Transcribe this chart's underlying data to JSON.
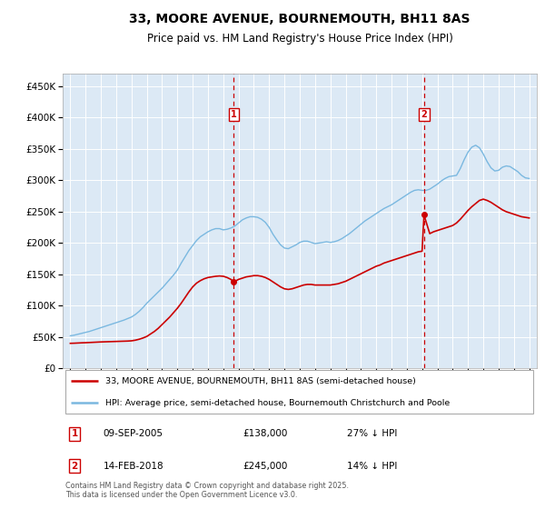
{
  "title": "33, MOORE AVENUE, BOURNEMOUTH, BH11 8AS",
  "subtitle": "Price paid vs. HM Land Registry's House Price Index (HPI)",
  "title_fontsize": 10,
  "subtitle_fontsize": 8.5,
  "background_color": "#dce9f5",
  "plot_bg_color": "#dce9f5",
  "ylim": [
    0,
    470000
  ],
  "yticks": [
    0,
    50000,
    100000,
    150000,
    200000,
    250000,
    300000,
    350000,
    400000,
    450000
  ],
  "xlim_start": 1994.5,
  "xlim_end": 2025.5,
  "legend_entry1": "33, MOORE AVENUE, BOURNEMOUTH, BH11 8AS (semi-detached house)",
  "legend_entry2": "HPI: Average price, semi-detached house, Bournemouth Christchurch and Poole",
  "purchase1_date": "09-SEP-2005",
  "purchase1_price": "£138,000",
  "purchase1_hpi": "27% ↓ HPI",
  "purchase1_year": 2005.69,
  "purchase1_value": 138000,
  "purchase2_date": "14-FEB-2018",
  "purchase2_price": "£245,000",
  "purchase2_hpi": "14% ↓ HPI",
  "purchase2_year": 2018.12,
  "purchase2_value": 245000,
  "footer": "Contains HM Land Registry data © Crown copyright and database right 2025.\nThis data is licensed under the Open Government Licence v3.0.",
  "line_color_property": "#cc0000",
  "line_color_hpi": "#7ab8e0",
  "hpi_years": [
    1995,
    1995.25,
    1995.5,
    1995.75,
    1996,
    1996.25,
    1996.5,
    1996.75,
    1997,
    1997.25,
    1997.5,
    1997.75,
    1998,
    1998.25,
    1998.5,
    1998.75,
    1999,
    1999.25,
    1999.5,
    1999.75,
    2000,
    2000.25,
    2000.5,
    2000.75,
    2001,
    2001.25,
    2001.5,
    2001.75,
    2002,
    2002.25,
    2002.5,
    2002.75,
    2003,
    2003.25,
    2003.5,
    2003.75,
    2004,
    2004.25,
    2004.5,
    2004.75,
    2005,
    2005.25,
    2005.5,
    2005.75,
    2006,
    2006.25,
    2006.5,
    2006.75,
    2007,
    2007.25,
    2007.5,
    2007.75,
    2008,
    2008.25,
    2008.5,
    2008.75,
    2009,
    2009.25,
    2009.5,
    2009.75,
    2010,
    2010.25,
    2010.5,
    2010.75,
    2011,
    2011.25,
    2011.5,
    2011.75,
    2012,
    2012.25,
    2012.5,
    2012.75,
    2013,
    2013.25,
    2013.5,
    2013.75,
    2014,
    2014.25,
    2014.5,
    2014.75,
    2015,
    2015.25,
    2015.5,
    2015.75,
    2016,
    2016.25,
    2016.5,
    2016.75,
    2017,
    2017.25,
    2017.5,
    2017.75,
    2018,
    2018.25,
    2018.5,
    2018.75,
    2019,
    2019.25,
    2019.5,
    2019.75,
    2020,
    2020.25,
    2020.5,
    2020.75,
    2021,
    2021.25,
    2021.5,
    2021.75,
    2022,
    2022.25,
    2022.5,
    2022.75,
    2023,
    2023.25,
    2023.5,
    2023.75,
    2024,
    2024.25,
    2024.5,
    2024.75,
    2025
  ],
  "hpi_values": [
    52000,
    53000,
    54500,
    56000,
    57500,
    59000,
    61000,
    63000,
    65000,
    67000,
    69000,
    71000,
    73000,
    75000,
    77000,
    79500,
    82000,
    86000,
    91000,
    97000,
    104000,
    110000,
    116000,
    122000,
    128000,
    135000,
    142000,
    149000,
    157000,
    168000,
    178000,
    188000,
    196000,
    204000,
    210000,
    214000,
    218000,
    221000,
    223000,
    223000,
    221000,
    222000,
    224000,
    227000,
    232000,
    237000,
    240000,
    242000,
    242000,
    241000,
    238000,
    233000,
    225000,
    214000,
    205000,
    197000,
    192000,
    191000,
    194000,
    197000,
    201000,
    203000,
    203000,
    201000,
    199000,
    200000,
    201000,
    202000,
    201000,
    202000,
    204000,
    207000,
    211000,
    215000,
    220000,
    225000,
    230000,
    235000,
    239000,
    243000,
    247000,
    251000,
    255000,
    258000,
    261000,
    265000,
    269000,
    273000,
    277000,
    281000,
    284000,
    285000,
    284000,
    284000,
    286000,
    290000,
    294000,
    299000,
    303000,
    306000,
    307000,
    308000,
    319000,
    333000,
    345000,
    353000,
    356000,
    352000,
    342000,
    330000,
    320000,
    315000,
    316000,
    321000,
    323000,
    322000,
    318000,
    314000,
    308000,
    304000,
    303000
  ],
  "prop_years": [
    1995.0,
    1995.25,
    1995.5,
    1995.75,
    1996.0,
    1996.25,
    1996.5,
    1996.75,
    1997.0,
    1997.25,
    1997.5,
    1997.75,
    1998.0,
    1998.25,
    1998.5,
    1998.75,
    1999.0,
    1999.25,
    1999.5,
    1999.75,
    2000.0,
    2000.25,
    2000.5,
    2000.75,
    2001.0,
    2001.25,
    2001.5,
    2001.75,
    2002.0,
    2002.25,
    2002.5,
    2002.75,
    2003.0,
    2003.25,
    2003.5,
    2003.75,
    2004.0,
    2004.25,
    2004.5,
    2004.75,
    2005.0,
    2005.25,
    2005.5,
    2005.69,
    2006.0,
    2006.25,
    2006.5,
    2006.75,
    2007.0,
    2007.25,
    2007.5,
    2007.75,
    2008.0,
    2008.25,
    2008.5,
    2008.75,
    2009.0,
    2009.25,
    2009.5,
    2009.75,
    2010.0,
    2010.25,
    2010.5,
    2010.75,
    2011.0,
    2011.25,
    2011.5,
    2011.75,
    2012.0,
    2012.25,
    2012.5,
    2012.75,
    2013.0,
    2013.25,
    2013.5,
    2013.75,
    2014.0,
    2014.25,
    2014.5,
    2014.75,
    2015.0,
    2015.25,
    2015.5,
    2015.75,
    2016.0,
    2016.25,
    2016.5,
    2016.75,
    2017.0,
    2017.25,
    2017.5,
    2017.75,
    2018.0,
    2018.12,
    2018.5,
    2018.75,
    2019.0,
    2019.25,
    2019.5,
    2019.75,
    2020.0,
    2020.25,
    2020.5,
    2020.75,
    2021.0,
    2021.25,
    2021.5,
    2021.75,
    2022.0,
    2022.25,
    2022.5,
    2022.75,
    2023.0,
    2023.25,
    2023.5,
    2023.75,
    2024.0,
    2024.25,
    2024.5,
    2024.75,
    2025.0
  ],
  "prop_values": [
    40000,
    40200,
    40500,
    40800,
    41000,
    41300,
    41600,
    41900,
    42200,
    42400,
    42600,
    42800,
    43000,
    43200,
    43400,
    43600,
    44000,
    45000,
    46500,
    48500,
    51000,
    55000,
    59000,
    64000,
    70000,
    76000,
    82000,
    89000,
    96000,
    104000,
    113000,
    122000,
    130000,
    136000,
    140000,
    143000,
    145000,
    146000,
    147000,
    147500,
    147000,
    145000,
    142000,
    138000,
    142000,
    144000,
    146000,
    147000,
    148000,
    148000,
    147000,
    145000,
    142000,
    138000,
    134000,
    130000,
    127000,
    126000,
    127000,
    129000,
    131000,
    133000,
    134000,
    134000,
    133000,
    133000,
    133000,
    133000,
    133000,
    134000,
    135000,
    137000,
    139000,
    142000,
    145000,
    148000,
    151000,
    154000,
    157000,
    160000,
    163000,
    165000,
    168000,
    170000,
    172000,
    174000,
    176000,
    178000,
    180000,
    182000,
    184000,
    186000,
    187000,
    245000,
    215000,
    218000,
    220000,
    222000,
    224000,
    226000,
    228000,
    232000,
    238000,
    245000,
    252000,
    258000,
    263000,
    268000,
    270000,
    268000,
    265000,
    261000,
    257000,
    253000,
    250000,
    248000,
    246000,
    244000,
    242000,
    241000,
    240000
  ]
}
